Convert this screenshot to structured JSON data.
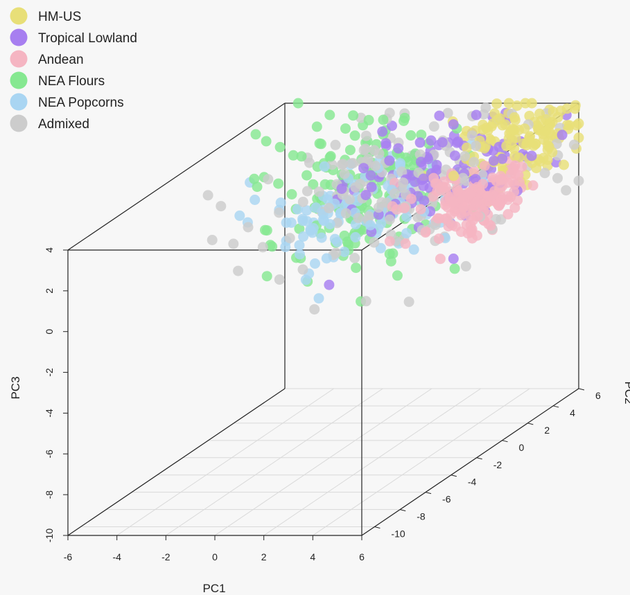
{
  "chart_data": {
    "type": "scatter",
    "title": "",
    "xlabel": "PC1",
    "ylabel": "PC3",
    "zlabel": "PC2",
    "xlim": [
      -6,
      6
    ],
    "ylim": [
      -10,
      4
    ],
    "zlim": [
      -11,
      6
    ],
    "x_ticks": [
      "-6",
      "-4",
      "-2",
      "0",
      "2",
      "4",
      "6"
    ],
    "y_ticks": [
      "-10",
      "-8",
      "-6",
      "-4",
      "-2",
      "0",
      "2",
      "4"
    ],
    "z_ticks": [
      "-10",
      "-8",
      "-6",
      "-4",
      "-2",
      "0",
      "2",
      "4",
      "6"
    ],
    "legend_position": "top-left",
    "grid": "floor plane only",
    "series": [
      {
        "name": "HM-US",
        "color": "#e8df78",
        "count": 130,
        "center": [
          4.5,
          3.0,
          4.5
        ],
        "spread": [
          1.2,
          0.9,
          1.6
        ]
      },
      {
        "name": "Tropical Lowland",
        "color": "#a77ff0",
        "count": 120,
        "center": [
          2.5,
          2.2,
          2.5
        ],
        "spread": [
          1.8,
          1.2,
          2.5
        ]
      },
      {
        "name": "Andean",
        "color": "#f5b5c2",
        "count": 170,
        "center": [
          5.0,
          2.0,
          -0.5
        ],
        "spread": [
          1.2,
          0.6,
          1.3
        ]
      },
      {
        "name": "NEA Flours",
        "color": "#86e891",
        "count": 170,
        "center": [
          -2.0,
          0.8,
          4.0
        ],
        "spread": [
          1.8,
          2.0,
          1.5
        ]
      },
      {
        "name": "NEA Popcorns",
        "color": "#a9d5f2",
        "count": 110,
        "center": [
          -0.5,
          0.8,
          1.0
        ],
        "spread": [
          2.0,
          1.2,
          1.5
        ]
      },
      {
        "name": "Admixed",
        "color": "#cccccc",
        "count": 150,
        "center": [
          1.5,
          1.8,
          1.5
        ],
        "spread": [
          2.5,
          1.5,
          3.0
        ]
      }
    ]
  }
}
